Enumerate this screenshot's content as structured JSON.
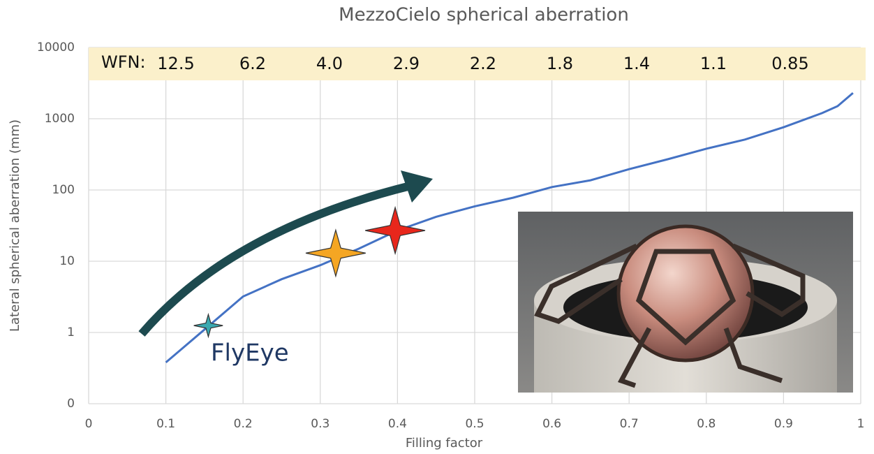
{
  "chart_data": {
    "type": "line",
    "title": "MezzoCielo spherical aberration",
    "x_label": "Filling factor",
    "y_label": "Lateral spherical aberration (mm)",
    "log_y": true,
    "grid": true,
    "xlim": [
      0,
      1
    ],
    "ylim": [
      0.1,
      10000
    ],
    "xticks": [
      0,
      0.1,
      0.2,
      0.3,
      0.4,
      0.5,
      0.6,
      0.7,
      0.8,
      0.9,
      1
    ],
    "yticks": [
      {
        "value": 0.1,
        "label": "0"
      },
      1,
      10,
      100,
      1000,
      10000
    ],
    "series": [
      {
        "color": "#4472c4",
        "x": [
          0.1,
          0.15,
          0.2,
          0.25,
          0.3,
          0.35,
          0.4,
          0.45,
          0.5,
          0.55,
          0.6,
          0.65,
          0.7,
          0.75,
          0.8,
          0.85,
          0.9,
          0.95,
          0.97,
          0.99
        ],
        "values": [
          0.38,
          1.1,
          3.2,
          5.6,
          8.8,
          15,
          27,
          42,
          59,
          78,
          110,
          137,
          196,
          270,
          380,
          510,
          760,
          1200,
          1500,
          2300
        ]
      }
    ],
    "markers": {
      "x": [
        0.155,
        0.32,
        0.397
      ],
      "values": [
        1.25,
        13,
        27
      ],
      "colors": [
        "#3aa9b0",
        "#f5a623",
        "#e8271c"
      ]
    },
    "annotation": "FlyEye",
    "wfn": {
      "label": "WFN:",
      "values": [
        "12.5",
        "6.2",
        "4.0",
        "2.9",
        "2.2",
        "1.8",
        "1.4",
        "1.1",
        "0.85"
      ]
    }
  }
}
